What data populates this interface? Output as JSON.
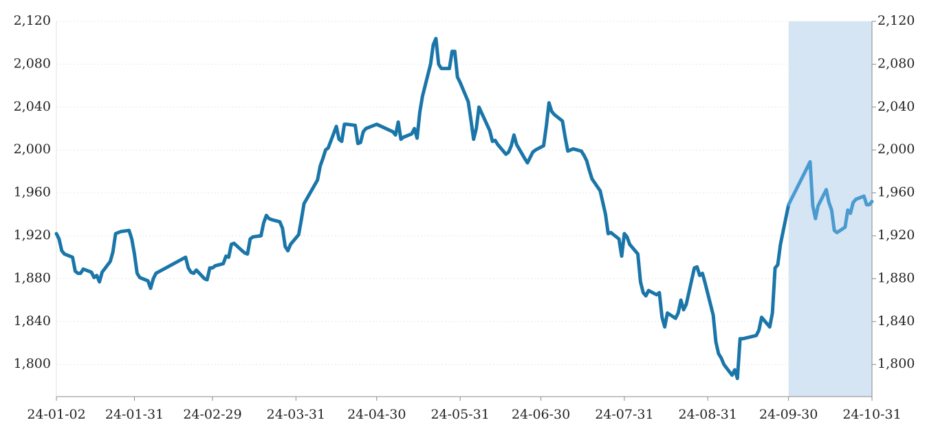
{
  "chart_data": {
    "type": "line",
    "x": [
      "24-01-02",
      "24-01-03",
      "24-01-04",
      "24-01-05",
      "24-01-08",
      "24-01-09",
      "24-01-10",
      "24-01-11",
      "24-01-12",
      "24-01-15",
      "24-01-16",
      "24-01-17",
      "24-01-18",
      "24-01-19",
      "24-01-22",
      "24-01-23",
      "24-01-24",
      "24-01-25",
      "24-01-26",
      "24-01-29",
      "24-01-30",
      "24-01-31",
      "24-02-01",
      "24-02-02",
      "24-02-05",
      "24-02-06",
      "24-02-07",
      "24-02-08",
      "24-02-19",
      "24-02-20",
      "24-02-21",
      "24-02-22",
      "24-02-23",
      "24-02-26",
      "24-02-27",
      "24-02-28",
      "24-02-29",
      "24-03-01",
      "24-03-04",
      "24-03-05",
      "24-03-06",
      "24-03-07",
      "24-03-08",
      "24-03-11",
      "24-03-12",
      "24-03-13",
      "24-03-14",
      "24-03-15",
      "24-03-18",
      "24-03-19",
      "24-03-20",
      "24-03-21",
      "24-03-22",
      "24-03-25",
      "24-03-26",
      "24-03-27",
      "24-03-28",
      "24-03-29",
      "24-04-01",
      "24-04-02",
      "24-04-03",
      "24-04-08",
      "24-04-09",
      "24-04-10",
      "24-04-11",
      "24-04-12",
      "24-04-15",
      "24-04-16",
      "24-04-17",
      "24-04-18",
      "24-04-19",
      "24-04-22",
      "24-04-23",
      "24-04-24",
      "24-04-25",
      "24-04-26",
      "24-04-29",
      "24-04-30",
      "24-05-06",
      "24-05-07",
      "24-05-08",
      "24-05-09",
      "24-05-10",
      "24-05-13",
      "24-05-14",
      "24-05-15",
      "24-05-16",
      "24-05-17",
      "24-05-20",
      "24-05-21",
      "24-05-22",
      "24-05-23",
      "24-05-24",
      "24-05-27",
      "24-05-28",
      "24-05-29",
      "24-05-30",
      "24-05-31",
      "24-06-03",
      "24-06-04",
      "24-06-05",
      "24-06-06",
      "24-06-07",
      "24-06-11",
      "24-06-12",
      "24-06-13",
      "24-06-14",
      "24-06-17",
      "24-06-18",
      "24-06-19",
      "24-06-20",
      "24-06-21",
      "24-06-24",
      "24-06-25",
      "24-06-26",
      "24-06-27",
      "24-06-28",
      "24-07-01",
      "24-07-02",
      "24-07-03",
      "24-07-04",
      "24-07-05",
      "24-07-08",
      "24-07-09",
      "24-07-10",
      "24-07-11",
      "24-07-12",
      "24-07-15",
      "24-07-16",
      "24-07-17",
      "24-07-18",
      "24-07-19",
      "24-07-22",
      "24-07-23",
      "24-07-24",
      "24-07-25",
      "24-07-26",
      "24-07-29",
      "24-07-30",
      "24-07-31",
      "24-08-01",
      "24-08-02",
      "24-08-05",
      "24-08-06",
      "24-08-07",
      "24-08-08",
      "24-08-09",
      "24-08-12",
      "24-08-13",
      "24-08-14",
      "24-08-15",
      "24-08-16",
      "24-08-19",
      "24-08-20",
      "24-08-21",
      "24-08-22",
      "24-08-23",
      "24-08-26",
      "24-08-27",
      "24-08-28",
      "24-08-29",
      "24-08-30",
      "24-09-02",
      "24-09-03",
      "24-09-04",
      "24-09-05",
      "24-09-06",
      "24-09-09",
      "24-09-10",
      "24-09-11",
      "24-09-12",
      "24-09-13",
      "24-09-18",
      "24-09-19",
      "24-09-20",
      "24-09-23",
      "24-09-24",
      "24-09-25",
      "24-09-26",
      "24-09-27",
      "24-09-30",
      "24-10-08",
      "24-10-09",
      "24-10-10",
      "24-10-11",
      "24-10-14",
      "24-10-15",
      "24-10-16",
      "24-10-17",
      "24-10-18",
      "24-10-21",
      "24-10-22",
      "24-10-23",
      "24-10-24",
      "24-10-25",
      "24-10-28",
      "24-10-29",
      "24-10-30",
      "24-10-31"
    ],
    "values": [
      1922,
      1917,
      1906,
      1903,
      1900,
      1887,
      1885,
      1885,
      1889,
      1886,
      1881,
      1883,
      1877,
      1886,
      1896,
      1905,
      1922,
      1923,
      1924,
      1925,
      1917,
      1903,
      1885,
      1881,
      1878,
      1871,
      1880,
      1885,
      1900,
      1890,
      1886,
      1885,
      1888,
      1880,
      1879,
      1890,
      1890,
      1892,
      1894,
      1901,
      1900,
      1912,
      1913,
      1906,
      1904,
      1903,
      1917,
      1919,
      1920,
      1932,
      1939,
      1936,
      1935,
      1933,
      1927,
      1910,
      1906,
      1912,
      1921,
      1935,
      1950,
      1972,
      1985,
      1992,
      2000,
      2002,
      2022,
      2010,
      2008,
      2024,
      2024,
      2023,
      2006,
      2007,
      2017,
      2020,
      2023,
      2024,
      2017,
      2014,
      2026,
      2010,
      2012,
      2015,
      2020,
      2011,
      2035,
      2050,
      2080,
      2098,
      2104,
      2080,
      2076,
      2076,
      2092,
      2092,
      2068,
      2063,
      2045,
      2028,
      2010,
      2020,
      2040,
      2018,
      2008,
      2009,
      2005,
      1996,
      1998,
      2004,
      2014,
      2005,
      1992,
      1988,
      1993,
      1998,
      2000,
      2004,
      2022,
      2044,
      2036,
      2033,
      2027,
      2012,
      1999,
      2000,
      2001,
      1999,
      1995,
      1990,
      1981,
      1973,
      1962,
      1951,
      1940,
      1922,
      1923,
      1917,
      1901,
      1922,
      1919,
      1912,
      1903,
      1877,
      1867,
      1864,
      1869,
      1865,
      1867,
      1844,
      1835,
      1848,
      1843,
      1848,
      1860,
      1851,
      1856,
      1890,
      1891,
      1883,
      1885,
      1876,
      1846,
      1821,
      1810,
      1806,
      1800,
      1790,
      1795,
      1787,
      1824,
      1824,
      1827,
      1832,
      1844,
      1835,
      1848,
      1890,
      1893,
      1912,
      1949,
      1989,
      1948,
      1936,
      1948,
      1963,
      1951,
      1944,
      1925,
      1923,
      1928,
      1944,
      1941,
      1951,
      1954,
      1957,
      1949,
      1949,
      1952
    ],
    "color": "#1a76a8",
    "highlight": {
      "range": [
        "24-09-30",
        "24-10-31"
      ],
      "color": "#d5e5f4",
      "line_color": "#4a9bd0"
    },
    "xlim": [
      "24-01-02",
      "24-10-31"
    ],
    "xticks": [
      "24-01-02",
      "24-01-31",
      "24-02-29",
      "24-03-31",
      "24-04-30",
      "24-05-31",
      "24-06-30",
      "24-07-31",
      "24-08-31",
      "24-09-30",
      "24-10-31"
    ],
    "ylim": [
      1770,
      2120
    ],
    "yticks": [
      {
        "value": 1800,
        "label": "1,800"
      },
      {
        "value": 1840,
        "label": "1,840"
      },
      {
        "value": 1880,
        "label": "1,880"
      },
      {
        "value": 1920,
        "label": "1,920"
      },
      {
        "value": 1960,
        "label": "1,960"
      },
      {
        "value": 2000,
        "label": "2,000"
      },
      {
        "value": 2040,
        "label": "2,040"
      },
      {
        "value": 2080,
        "label": "2,080"
      },
      {
        "value": 2120,
        "label": "2,120"
      }
    ],
    "y2lim": [
      1770,
      2120
    ],
    "y2ticks": [
      {
        "value": 1800,
        "label": "1,800"
      },
      {
        "value": 1840,
        "label": "1,840"
      },
      {
        "value": 1880,
        "label": "1,880"
      },
      {
        "value": 1920,
        "label": "1,920"
      },
      {
        "value": 1960,
        "label": "1,960"
      },
      {
        "value": 2000,
        "label": "2,000"
      },
      {
        "value": 2040,
        "label": "2,040"
      },
      {
        "value": 2080,
        "label": "2,080"
      },
      {
        "value": 2120,
        "label": "2,120"
      }
    ],
    "grid": true
  }
}
